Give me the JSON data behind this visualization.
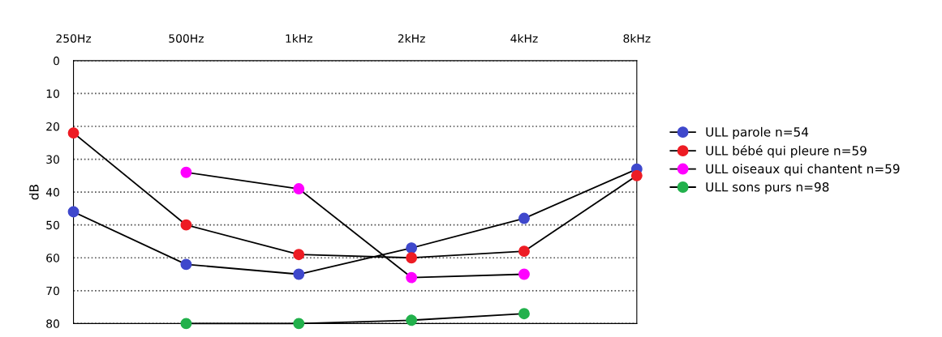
{
  "chart_data": {
    "type": "line",
    "ylabel": "dB",
    "categories": [
      "250Hz",
      "500Hz",
      "1kHz",
      "2kHz",
      "4kHz",
      "8kHz"
    ],
    "series": [
      {
        "name": "ULL parole n=54",
        "color": "#3f48cc",
        "values": [
          46,
          62,
          65,
          57,
          48,
          33
        ]
      },
      {
        "name": "ULL bébé qui pleure n=59",
        "color": "#ed1c24",
        "values": [
          22,
          50,
          59,
          60,
          58,
          35
        ]
      },
      {
        "name": "ULL oiseaux qui chantent n=59",
        "color": "#ff00ff",
        "values": [
          null,
          34,
          39,
          66,
          65,
          null
        ]
      },
      {
        "name": "ULL sons purs n=98",
        "color": "#22b14c",
        "values": [
          null,
          80,
          80,
          79,
          77,
          null
        ]
      }
    ],
    "ylim": [
      80,
      0
    ],
    "yticks": [
      0,
      10,
      20,
      30,
      40,
      50,
      60,
      70,
      80
    ],
    "grid": "y",
    "legend": "right",
    "marker": "circle",
    "line_style": "solid"
  }
}
